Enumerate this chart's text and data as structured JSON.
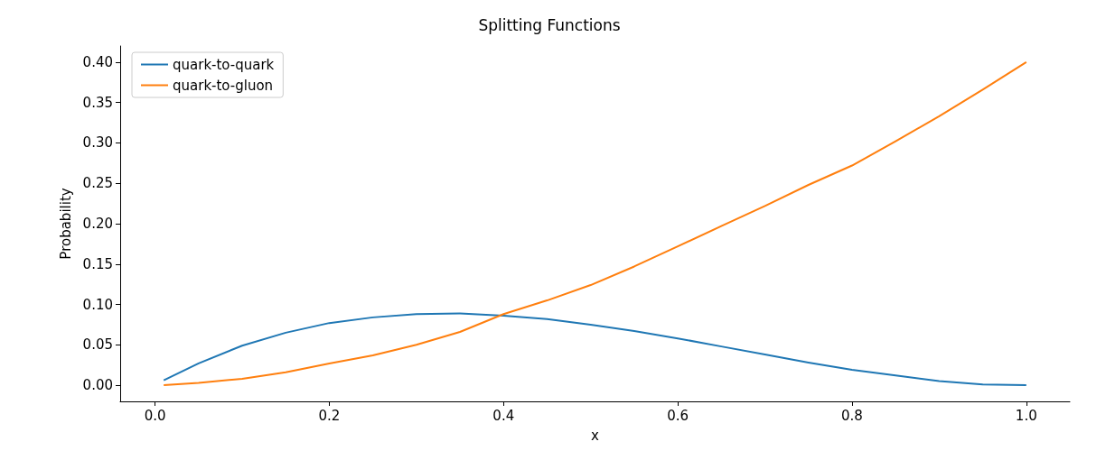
{
  "chart_data": {
    "type": "line",
    "title": "Splitting Functions",
    "xlabel": "x",
    "ylabel": "Probability",
    "x": [
      0.01,
      0.05,
      0.1,
      0.15,
      0.2,
      0.25,
      0.3,
      0.35,
      0.4,
      0.45,
      0.5,
      0.55,
      0.6,
      0.65,
      0.7,
      0.75,
      0.8,
      0.85,
      0.9,
      0.95,
      1.0
    ],
    "series": [
      {
        "name": "quark-to-quark",
        "color": "#1f77b4",
        "values": [
          0.006,
          0.027,
          0.049,
          0.065,
          0.077,
          0.084,
          0.088,
          0.089,
          0.086,
          0.082,
          0.075,
          0.067,
          0.058,
          0.048,
          0.038,
          0.028,
          0.019,
          0.012,
          0.005,
          0.001,
          0.0
        ]
      },
      {
        "name": "quark-to-gluon",
        "color": "#ff7f0e",
        "values": [
          0.0,
          0.003,
          0.008,
          0.016,
          0.027,
          0.037,
          0.05,
          0.066,
          0.088,
          0.105,
          0.124,
          0.147,
          0.172,
          0.197,
          0.222,
          0.248,
          0.272,
          0.302,
          0.333,
          0.366,
          0.4
        ]
      }
    ],
    "xlim": [
      -0.04,
      1.05
    ],
    "ylim": [
      -0.02,
      0.42
    ],
    "xticks": [
      {
        "value": 0,
        "label": "0.0"
      },
      0.2,
      0.4,
      0.6,
      0.8,
      {
        "value": 1,
        "label": "1.0"
      }
    ],
    "yticks": [
      {
        "value": 0,
        "label": "0.00"
      },
      0.05,
      {
        "value": 0.1,
        "label": "0.10"
      },
      0.15,
      {
        "value": 0.2,
        "label": "0.20"
      },
      0.25,
      {
        "value": 0.3,
        "label": "0.30"
      },
      0.35,
      {
        "value": 0.4,
        "label": "0.40"
      }
    ],
    "grid": false,
    "legend": "top left",
    "marker": "none",
    "line_style": "solid"
  }
}
